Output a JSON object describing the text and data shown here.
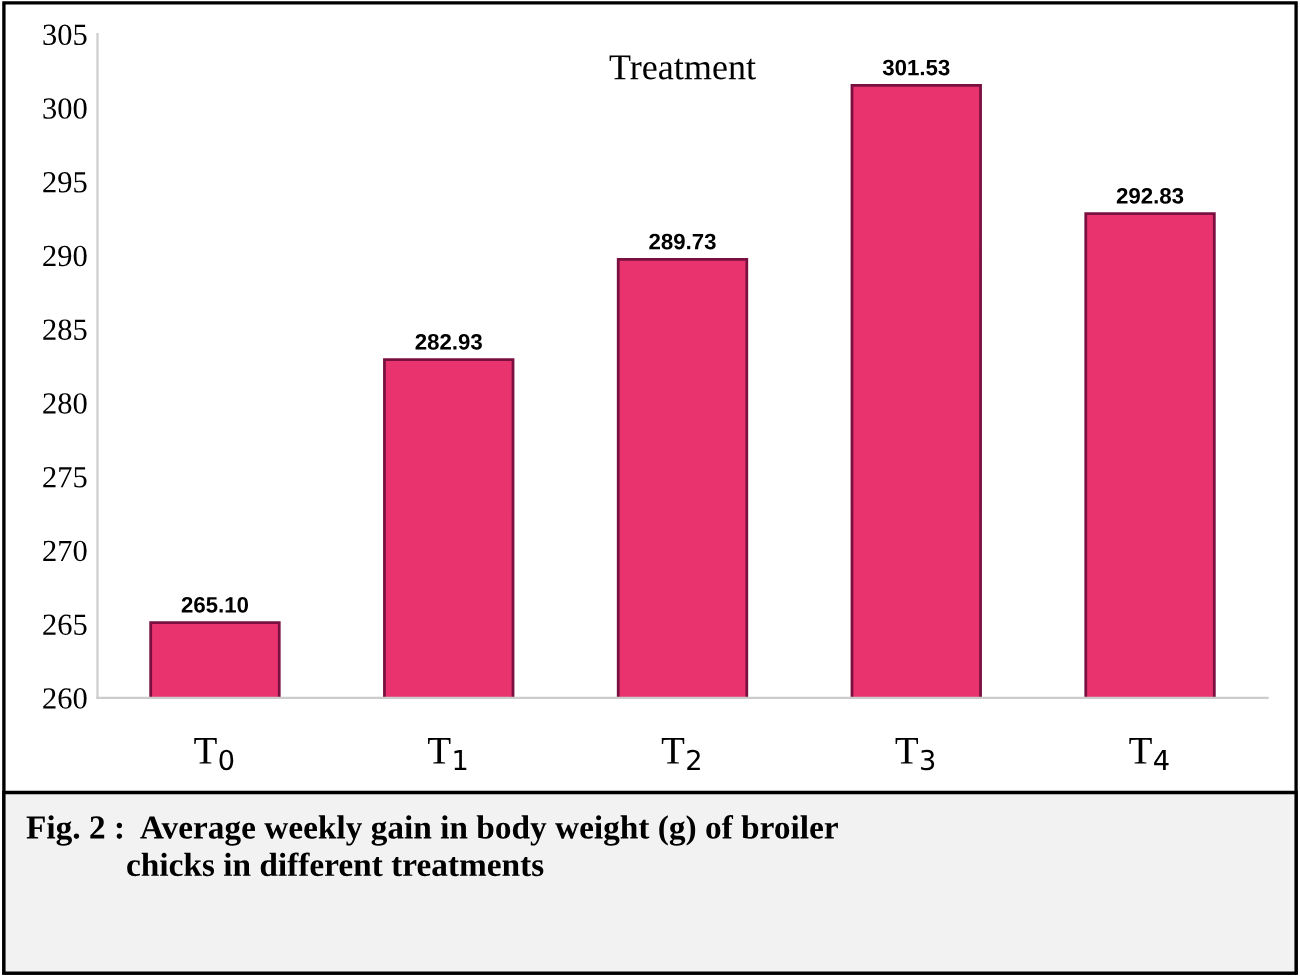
{
  "chart_data": {
    "type": "bar",
    "title": "Treatment",
    "categories": [
      "T$_{0}$",
      "T$_{1}$",
      "T$_{2}$",
      "T$_{3}$",
      "T$_{4}$"
    ],
    "values": [
      265.1,
      282.93,
      289.73,
      301.53,
      292.83
    ],
    "value_labels": [
      "265.10",
      "282.93",
      "289.73",
      "301.53",
      "292.83"
    ],
    "color": "#e8336e",
    "ylim": [
      260,
      305
    ],
    "yticks": [
      260,
      265,
      270,
      275,
      280,
      285,
      290,
      295,
      300,
      305
    ],
    "grid": false,
    "legend": false,
    "annotations": [
      "Fig. 2 :  Average weekly gain in body weight (g) of broiler\n            chicks in different treatments"
    ]
  }
}
